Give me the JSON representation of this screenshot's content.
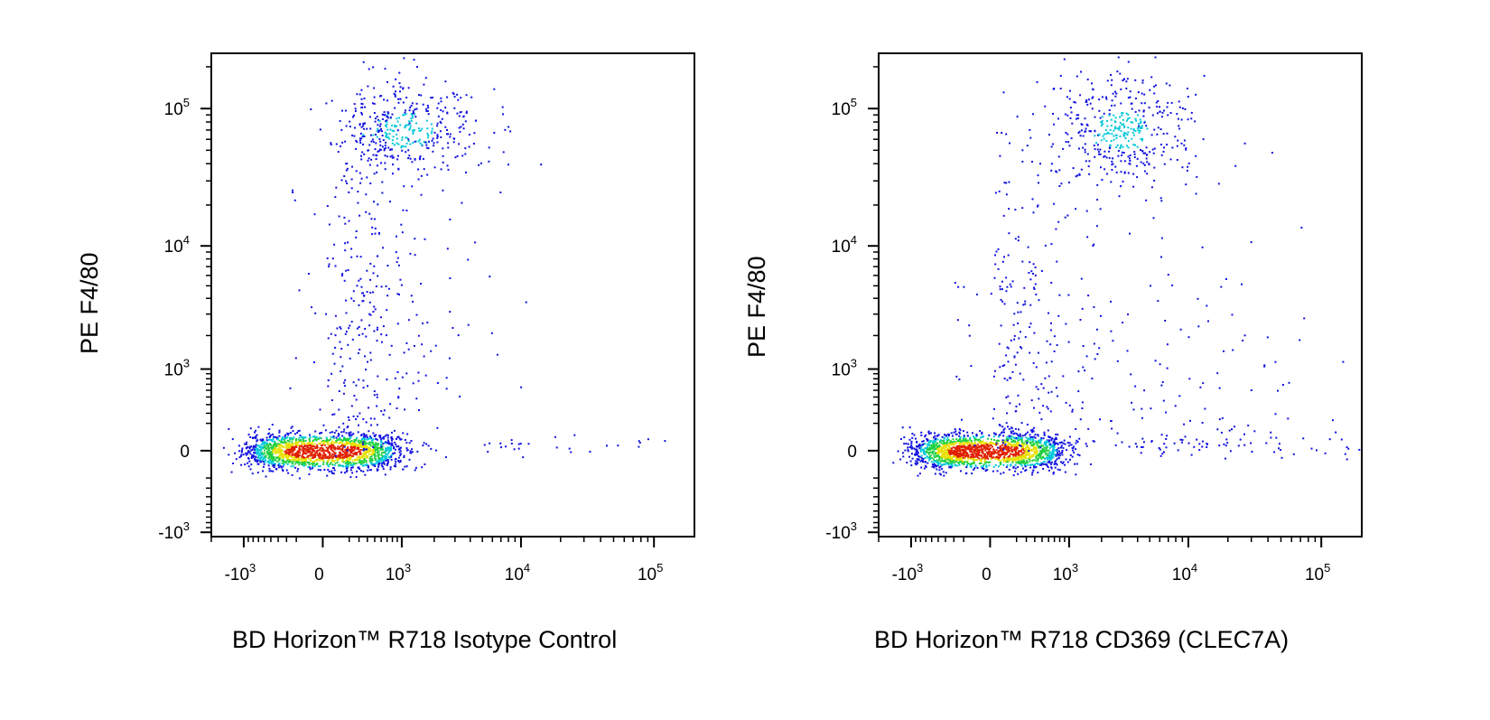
{
  "chart_data": [
    {
      "type": "scatter",
      "subtype": "flow-cytometry-pseudocolor-density",
      "title": "",
      "xlabel": "BD Horizon™ R718 Isotype Control",
      "ylabel": "PE F4/80",
      "x_scale": "biexponential",
      "y_scale": "biexponential",
      "xlim": [
        -2000,
        200000
      ],
      "ylim": [
        -1100,
        250000
      ],
      "x_ticks": [
        {
          "base": "-10",
          "exp": "3",
          "value": -1000
        },
        {
          "base": "0",
          "exp": "",
          "value": 0
        },
        {
          "base": "10",
          "exp": "3",
          "value": 1000
        },
        {
          "base": "10",
          "exp": "4",
          "value": 10000
        },
        {
          "base": "10",
          "exp": "5",
          "value": 100000
        }
      ],
      "y_ticks": [
        {
          "base": "10",
          "exp": "5",
          "value": 100000
        },
        {
          "base": "10",
          "exp": "4",
          "value": 10000
        },
        {
          "base": "10",
          "exp": "3",
          "value": 1000
        },
        {
          "base": "0",
          "exp": "",
          "value": 0
        },
        {
          "base": "-10",
          "exp": "3",
          "value": -1000
        }
      ],
      "populations": [
        {
          "name": "",
          "x_center": 0,
          "y_center": 0,
          "x_spread": 450,
          "y_spread": 60,
          "count": 1700,
          "density": "high"
        },
        {
          "name": "",
          "x_center": 1100,
          "y_center": 70000,
          "x_spread": 0.35,
          "y_spread": 0.18,
          "count": 420,
          "density": "medium"
        },
        {
          "name": "",
          "x_center": 400,
          "y_center": 3000,
          "x_spread": 0.5,
          "y_spread": 0.9,
          "count": 330,
          "density": "low"
        },
        {
          "name": "",
          "x_center": 8000,
          "y_center": 40,
          "x_spread": 1.1,
          "y_spread": 40,
          "count": 45,
          "density": "low"
        }
      ],
      "grid": false,
      "legend": "none",
      "colors": {
        "low": "#1010e0",
        "mid_low": "#00c8d8",
        "mid": "#20d040",
        "mid_high": "#e8e000",
        "high": "#e02000"
      }
    },
    {
      "type": "scatter",
      "subtype": "flow-cytometry-pseudocolor-density",
      "title": "",
      "xlabel": "BD Horizon™ R718 CD369 (CLEC7A)",
      "ylabel": "PE F4/80",
      "x_scale": "biexponential",
      "y_scale": "biexponential",
      "xlim": [
        -2000,
        200000
      ],
      "ylim": [
        -1100,
        250000
      ],
      "x_ticks": [
        {
          "base": "-10",
          "exp": "3",
          "value": -1000
        },
        {
          "base": "0",
          "exp": "",
          "value": 0
        },
        {
          "base": "10",
          "exp": "3",
          "value": 1000
        },
        {
          "base": "10",
          "exp": "4",
          "value": 10000
        },
        {
          "base": "10",
          "exp": "5",
          "value": 100000
        }
      ],
      "y_ticks": [
        {
          "base": "10",
          "exp": "5",
          "value": 100000
        },
        {
          "base": "10",
          "exp": "4",
          "value": 10000
        },
        {
          "base": "10",
          "exp": "3",
          "value": 1000
        },
        {
          "base": "0",
          "exp": "",
          "value": 0
        },
        {
          "base": "-10",
          "exp": "3",
          "value": -1000
        }
      ],
      "populations": [
        {
          "name": "",
          "x_center": -50,
          "y_center": 0,
          "x_spread": 450,
          "y_spread": 60,
          "count": 1700,
          "density": "high"
        },
        {
          "name": "",
          "x_center": 3000,
          "y_center": 70000,
          "x_spread": 0.3,
          "y_spread": 0.2,
          "count": 420,
          "density": "medium"
        },
        {
          "name": "",
          "x_center": 300,
          "y_center": 2500,
          "x_spread": 0.5,
          "y_spread": 0.9,
          "count": 280,
          "density": "low"
        },
        {
          "name": "",
          "x_center": 10000,
          "y_center": 600,
          "x_spread": 0.5,
          "y_spread": 0.8,
          "count": 110,
          "density": "low"
        },
        {
          "name": "",
          "x_center": 15000,
          "y_center": 40,
          "x_spread": 0.9,
          "y_spread": 40,
          "count": 60,
          "density": "low"
        }
      ],
      "grid": false,
      "legend": "none",
      "colors": {
        "low": "#1010e0",
        "mid_low": "#00c8d8",
        "mid": "#20d040",
        "mid_high": "#e8e000",
        "high": "#e02000"
      }
    }
  ]
}
